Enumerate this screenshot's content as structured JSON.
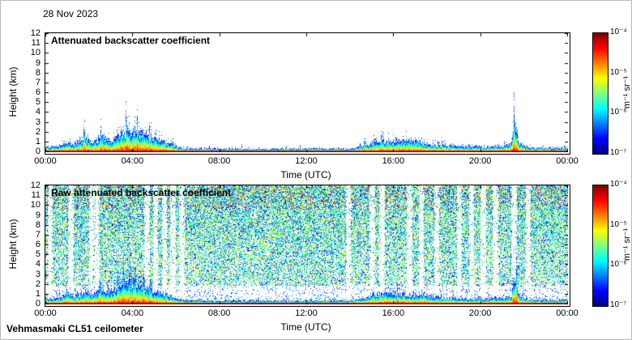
{
  "page": {
    "date_label": "28 Nov 2023",
    "footer": "Vehmasmaki CL51 ceilometer"
  },
  "chart_data": [
    {
      "type": "heatmap",
      "variant": "calibrated",
      "title": "Attenuated backscatter coefficient",
      "xlabel": "Time (UTC)",
      "ylabel": "Height (km)",
      "x_ticks": [
        "00:00",
        "04:00",
        "08:00",
        "12:00",
        "16:00",
        "20:00",
        "00:00"
      ],
      "x_range_hours": [
        0,
        24
      ],
      "y_ticks": [
        "0",
        "1",
        "2",
        "3",
        "4",
        "5",
        "6",
        "7",
        "8",
        "9",
        "10",
        "11",
        "12"
      ],
      "y_range_km": [
        0,
        12
      ],
      "colormap": "jet",
      "color_scale": "log",
      "colorbar_ticks": [
        "10⁻⁴",
        "10⁻⁵",
        "10⁻⁶",
        "10⁻⁷"
      ],
      "colorbar_range": [
        "1e-7",
        "1e-4"
      ],
      "colorbar_label": "m⁻¹ sr⁻¹",
      "features": {
        "surface_layer": "strong backscatter (red/orange) in the lowest ~200 m throughout the day",
        "plume": "mixed aerosol/cloud layer rising to ~2 km between 03:00 and 05:30",
        "afternoon_layer": "weak speckled layer 0.5-1.5 km between 15:00 and 18:00",
        "narrow_spike": "narrow column reaching ~2.8 km near 21:30",
        "boundary_layer_top_km": {
          "hours": [
            0,
            0.5,
            1.0,
            1.3,
            1.8,
            2.2,
            2.6,
            3.0,
            3.3,
            3.6,
            4.0,
            4.3,
            4.6,
            5.0,
            5.3,
            5.6,
            6.0,
            6.5,
            7.5,
            8.0,
            10.0,
            12.0,
            14.0,
            14.7,
            15.2,
            16.0,
            17.0,
            17.6,
            18.3,
            19.0,
            20.0,
            21.0,
            21.4,
            21.55,
            21.7,
            22.2,
            23.0,
            24.0
          ],
          "top_km": [
            0.45,
            0.5,
            0.9,
            0.7,
            1.1,
            0.9,
            1.3,
            1.1,
            1.5,
            1.9,
            2.1,
            1.9,
            1.5,
            1.3,
            1.1,
            0.8,
            0.45,
            0.3,
            0.3,
            0.28,
            0.26,
            0.28,
            0.3,
            0.55,
            0.9,
            1.0,
            0.9,
            0.7,
            0.55,
            0.5,
            0.45,
            0.5,
            0.8,
            2.8,
            0.8,
            0.4,
            0.35,
            0.35
          ]
        }
      }
    },
    {
      "type": "heatmap",
      "variant": "raw",
      "title": "Raw attenuated backscatter coefficient",
      "xlabel": "Time (UTC)",
      "ylabel": "Height (km)",
      "x_ticks": [
        "00:00",
        "04:00",
        "08:00",
        "12:00",
        "16:00",
        "20:00",
        "00:00"
      ],
      "x_range_hours": [
        0,
        24
      ],
      "y_ticks": [
        "0",
        "1",
        "2",
        "3",
        "4",
        "5",
        "6",
        "7",
        "8",
        "9",
        "10",
        "11",
        "12"
      ],
      "y_range_km": [
        0,
        12
      ],
      "colormap": "jet",
      "color_scale": "log",
      "colorbar_ticks": [
        "10⁻⁴",
        "10⁻⁵",
        "10⁻⁶",
        "10⁻⁷"
      ],
      "colorbar_range": [
        "1e-7",
        "1e-4"
      ],
      "colorbar_label": "m⁻¹ sr⁻¹",
      "features": {
        "noise": "dense green/blue speckle noise at all heights above ~1.8 km for the full 24 h, yellow/red specks near 10-12 km",
        "clear_gap": "mostly white band with sparse blue speckles between ~0.5 and 1.8 km",
        "white_stripe_hours": [
          0.2,
          1.15,
          2.1,
          2.35,
          4.65,
          5.05,
          5.45,
          5.85,
          6.25,
          13.9,
          15.0,
          15.45,
          16.7,
          17.25,
          17.95,
          19.0,
          19.55,
          20.1,
          20.65,
          21.5,
          22.15
        ],
        "surface_layer": "same strong low-level backscatter band as the calibrated panel"
      }
    }
  ]
}
